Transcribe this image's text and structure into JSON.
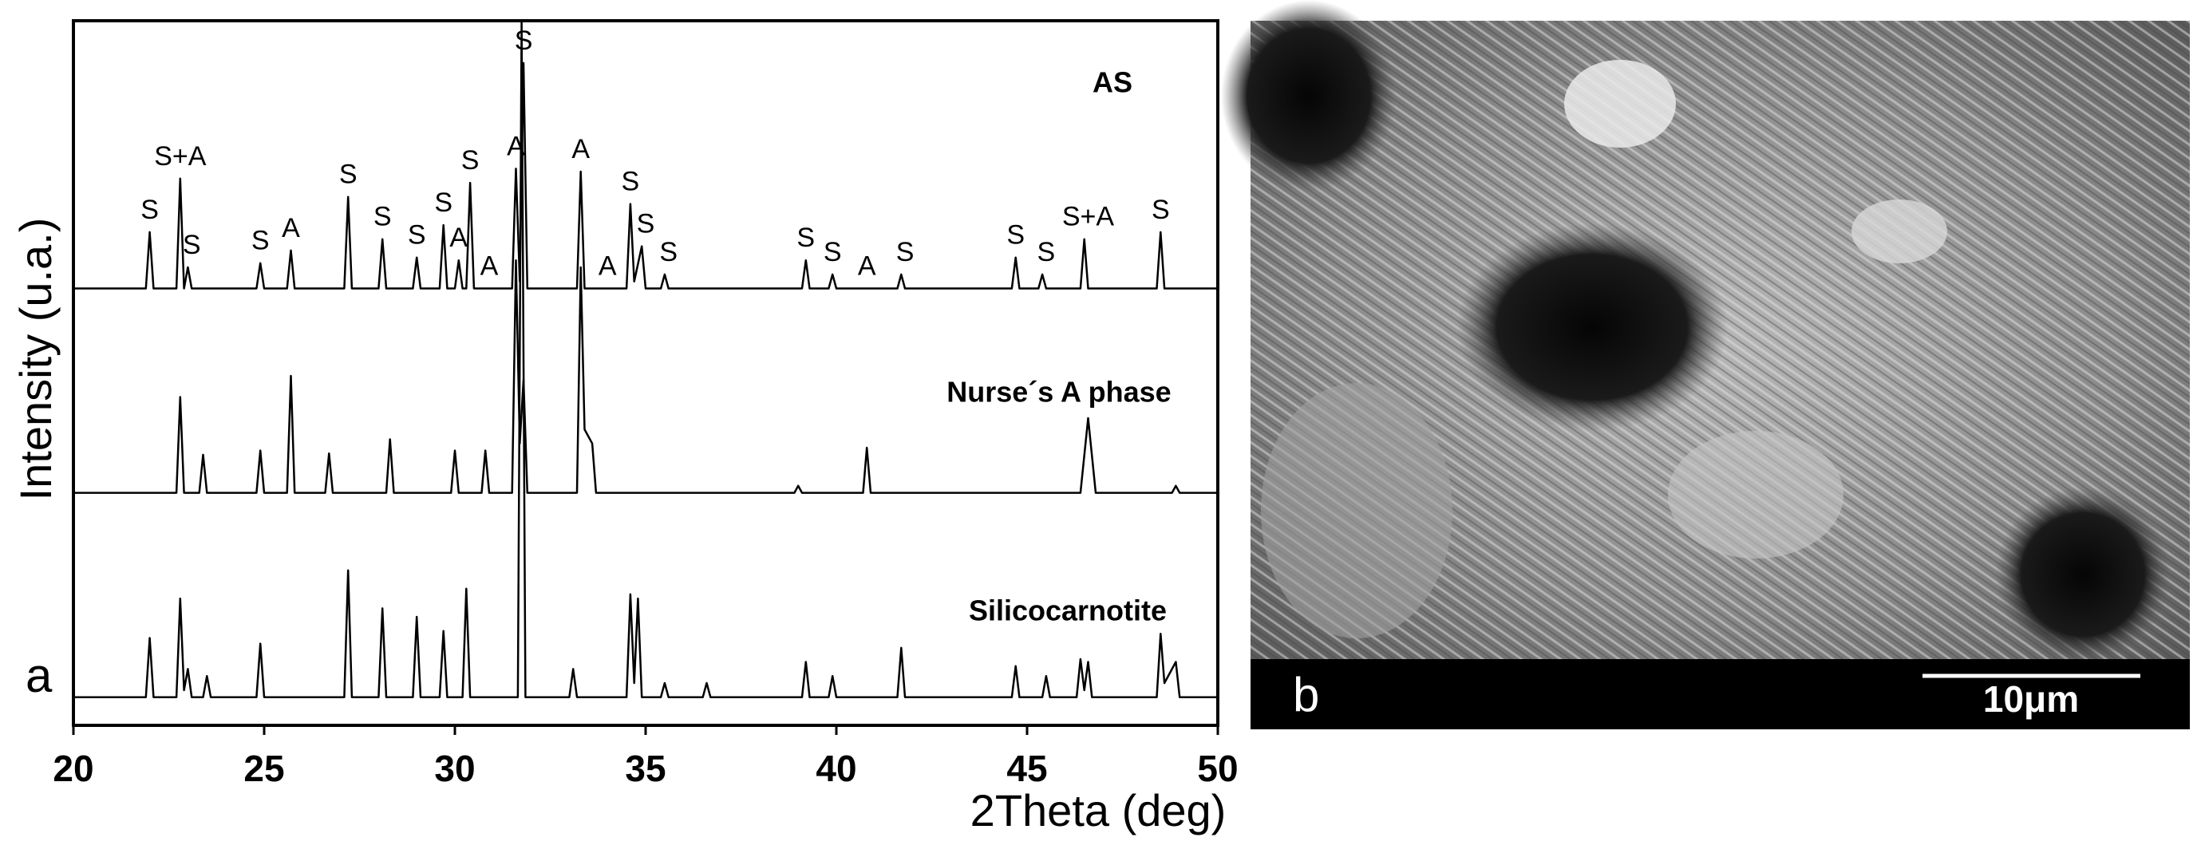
{
  "chart_data": {
    "type": "line",
    "panel_label": "a",
    "xlabel": "2Theta (deg)",
    "ylabel": "Intensity (u.a.)",
    "xlim": [
      20,
      50
    ],
    "xticks": [
      20,
      25,
      30,
      35,
      40,
      45,
      50
    ],
    "ylim": [
      0,
      100
    ],
    "color": "#000000",
    "series": [
      {
        "name": "AS",
        "x": [
          20,
          21.9,
          22.0,
          22.1,
          22.7,
          22.8,
          22.9,
          23.0,
          23.1,
          24.8,
          24.9,
          25.0,
          25.6,
          25.7,
          25.8,
          27.1,
          27.2,
          27.3,
          28.0,
          28.1,
          28.2,
          28.9,
          29.0,
          29.1,
          29.6,
          29.7,
          29.8,
          30.0,
          30.1,
          30.2,
          30.3,
          30.4,
          30.5,
          31.5,
          31.6,
          31.7,
          31.8,
          31.9,
          33.2,
          33.3,
          33.4,
          34.5,
          34.6,
          34.7,
          34.9,
          35.0,
          35.4,
          35.5,
          35.6,
          39.1,
          39.2,
          39.3,
          39.8,
          39.9,
          40.0,
          41.6,
          41.7,
          41.8,
          44.6,
          44.7,
          44.8,
          45.3,
          45.4,
          45.5,
          46.4,
          46.5,
          46.6,
          48.4,
          48.5,
          48.6,
          50
        ],
        "values": [
          62,
          62,
          70,
          62,
          62,
          77.6,
          62,
          65,
          62,
          62,
          65.6,
          62,
          62,
          67.4,
          62,
          62,
          75,
          62,
          62,
          69,
          62,
          62,
          66.4,
          62,
          62,
          71,
          62,
          62,
          66,
          62,
          62,
          77,
          62,
          62,
          79,
          63,
          94,
          62,
          62,
          78.6,
          62,
          62,
          74,
          63,
          68,
          62,
          62,
          64,
          62,
          62,
          66,
          62,
          62,
          64,
          62,
          62,
          64,
          62,
          62,
          66.4,
          62,
          62,
          64,
          62,
          62,
          69,
          62,
          62,
          70,
          62,
          62
        ]
      },
      {
        "name": "Nurse´s A phase",
        "x": [
          20,
          22.7,
          22.8,
          22.9,
          23.3,
          23.4,
          23.5,
          24.8,
          24.9,
          25.0,
          25.6,
          25.7,
          25.8,
          26.6,
          26.7,
          26.8,
          28.2,
          28.3,
          28.4,
          29.9,
          30.0,
          30.1,
          30.7,
          30.8,
          30.9,
          31.5,
          31.6,
          31.7,
          31.8,
          31.9,
          33.2,
          33.3,
          33.4,
          33.6,
          33.7,
          38.9,
          39.0,
          39.1,
          40.7,
          40.8,
          40.9,
          46.4,
          46.6,
          46.8,
          48.8,
          48.9,
          49.0,
          50
        ],
        "values": [
          33,
          33,
          46.6,
          33,
          33,
          38.4,
          33,
          33,
          39,
          33,
          33,
          49.6,
          33,
          33,
          38.6,
          33,
          33,
          40.6,
          33,
          33,
          39,
          33,
          33,
          39,
          33,
          33,
          66,
          40,
          49,
          33,
          33,
          65,
          42,
          40,
          33,
          33,
          34,
          33,
          33,
          39.4,
          33,
          33,
          43.6,
          33,
          33,
          34,
          33,
          33
        ]
      },
      {
        "name": "Silicocarnotite",
        "x": [
          20,
          21.9,
          22.0,
          22.1,
          22.7,
          22.8,
          22.9,
          23.0,
          23.1,
          23.4,
          23.5,
          23.6,
          24.8,
          24.9,
          25.0,
          27.1,
          27.2,
          27.3,
          28.0,
          28.1,
          28.2,
          28.9,
          29.0,
          29.1,
          29.6,
          29.7,
          29.8,
          30.2,
          30.3,
          30.4,
          31.65,
          31.75,
          31.85,
          33.0,
          33.1,
          33.2,
          34.5,
          34.6,
          34.7,
          34.8,
          34.9,
          35.4,
          35.5,
          35.6,
          36.5,
          36.6,
          36.7,
          39.1,
          39.2,
          39.3,
          39.8,
          39.9,
          40.0,
          41.6,
          41.7,
          41.8,
          44.6,
          44.7,
          44.8,
          45.4,
          45.5,
          45.6,
          46.3,
          46.4,
          46.5,
          46.6,
          46.7,
          48.4,
          48.5,
          48.6,
          48.9,
          49.0,
          50
        ],
        "values": [
          4,
          4,
          12.4,
          4,
          4,
          18,
          5,
          8,
          4,
          4,
          7,
          4,
          4,
          11.6,
          4,
          4,
          22,
          4,
          4,
          16.6,
          4,
          4,
          15.4,
          4,
          4,
          13.4,
          4,
          4,
          19.4,
          4,
          4,
          100,
          4,
          4,
          8,
          4,
          4,
          18.6,
          6,
          18,
          4,
          4,
          6,
          4,
          4,
          6,
          4,
          4,
          9,
          4,
          4,
          7,
          4,
          4,
          11,
          4,
          4,
          8.4,
          4,
          4,
          7,
          4,
          4,
          9.4,
          5,
          9,
          4,
          4,
          13,
          6,
          9,
          4,
          4
        ]
      }
    ],
    "annotations": [
      {
        "text": "S",
        "x": 22.0
      },
      {
        "text": "S+A",
        "x": 22.8
      },
      {
        "text": "S",
        "x": 23.1
      },
      {
        "text": "S",
        "x": 24.9
      },
      {
        "text": "A",
        "x": 25.7
      },
      {
        "text": "S",
        "x": 27.2
      },
      {
        "text": "S",
        "x": 28.1
      },
      {
        "text": "S",
        "x": 29.0
      },
      {
        "text": "S",
        "x": 29.7
      },
      {
        "text": "A",
        "x": 30.1
      },
      {
        "text": "S",
        "x": 30.4
      },
      {
        "text": "A",
        "x": 30.9
      },
      {
        "text": "A",
        "x": 31.6
      },
      {
        "text": "S",
        "x": 31.8
      },
      {
        "text": "A",
        "x": 33.3
      },
      {
        "text": "A",
        "x": 34.0
      },
      {
        "text": "S",
        "x": 34.6
      },
      {
        "text": "S",
        "x": 35.0
      },
      {
        "text": "S",
        "x": 35.6
      },
      {
        "text": "S",
        "x": 39.2
      },
      {
        "text": "S",
        "x": 39.9
      },
      {
        "text": "A",
        "x": 40.8
      },
      {
        "text": "S",
        "x": 41.8
      },
      {
        "text": "S",
        "x": 44.7
      },
      {
        "text": "S",
        "x": 45.5
      },
      {
        "text": "S+A",
        "x": 46.6
      },
      {
        "text": "S",
        "x": 48.5
      }
    ]
  },
  "image_panel": {
    "panel_label": "b",
    "scale_bar": "10μm"
  }
}
